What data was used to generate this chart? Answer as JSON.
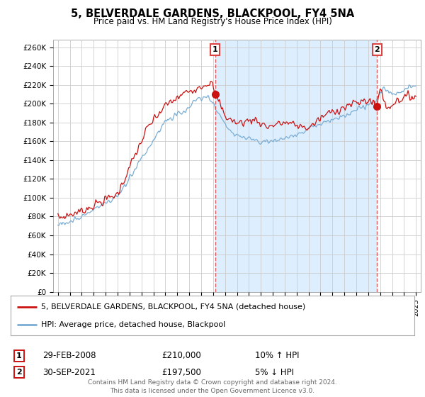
{
  "title": "5, BELVERDALE GARDENS, BLACKPOOL, FY4 5NA",
  "subtitle": "Price paid vs. HM Land Registry's House Price Index (HPI)",
  "ylabel_ticks": [
    "£0",
    "£20K",
    "£40K",
    "£60K",
    "£80K",
    "£100K",
    "£120K",
    "£140K",
    "£160K",
    "£180K",
    "£200K",
    "£220K",
    "£240K",
    "£260K"
  ],
  "ytick_vals": [
    0,
    20000,
    40000,
    60000,
    80000,
    100000,
    120000,
    140000,
    160000,
    180000,
    200000,
    220000,
    240000,
    260000
  ],
  "ylim": [
    0,
    268000
  ],
  "hpi_color": "#7aadd4",
  "price_color": "#cc1111",
  "shade_color": "#ddeeff",
  "marker1_date_x": 2008.17,
  "marker1_y": 210000,
  "marker2_date_x": 2021.75,
  "marker2_y": 197500,
  "vline1_x": 2008.17,
  "vline2_x": 2021.75,
  "legend_label1": "5, BELVERDALE GARDENS, BLACKPOOL, FY4 5NA (detached house)",
  "legend_label2": "HPI: Average price, detached house, Blackpool",
  "table_row1": [
    "1",
    "29-FEB-2008",
    "£210,000",
    "10% ↑ HPI"
  ],
  "table_row2": [
    "2",
    "30-SEP-2021",
    "£197,500",
    "5% ↓ HPI"
  ],
  "footer": "Contains HM Land Registry data © Crown copyright and database right 2024.\nThis data is licensed under the Open Government Licence v3.0.",
  "background_color": "#ffffff",
  "grid_color": "#cccccc",
  "xlim_min": 1994.6,
  "xlim_max": 2025.4,
  "xticks_start": 1995,
  "xticks_end": 2025
}
